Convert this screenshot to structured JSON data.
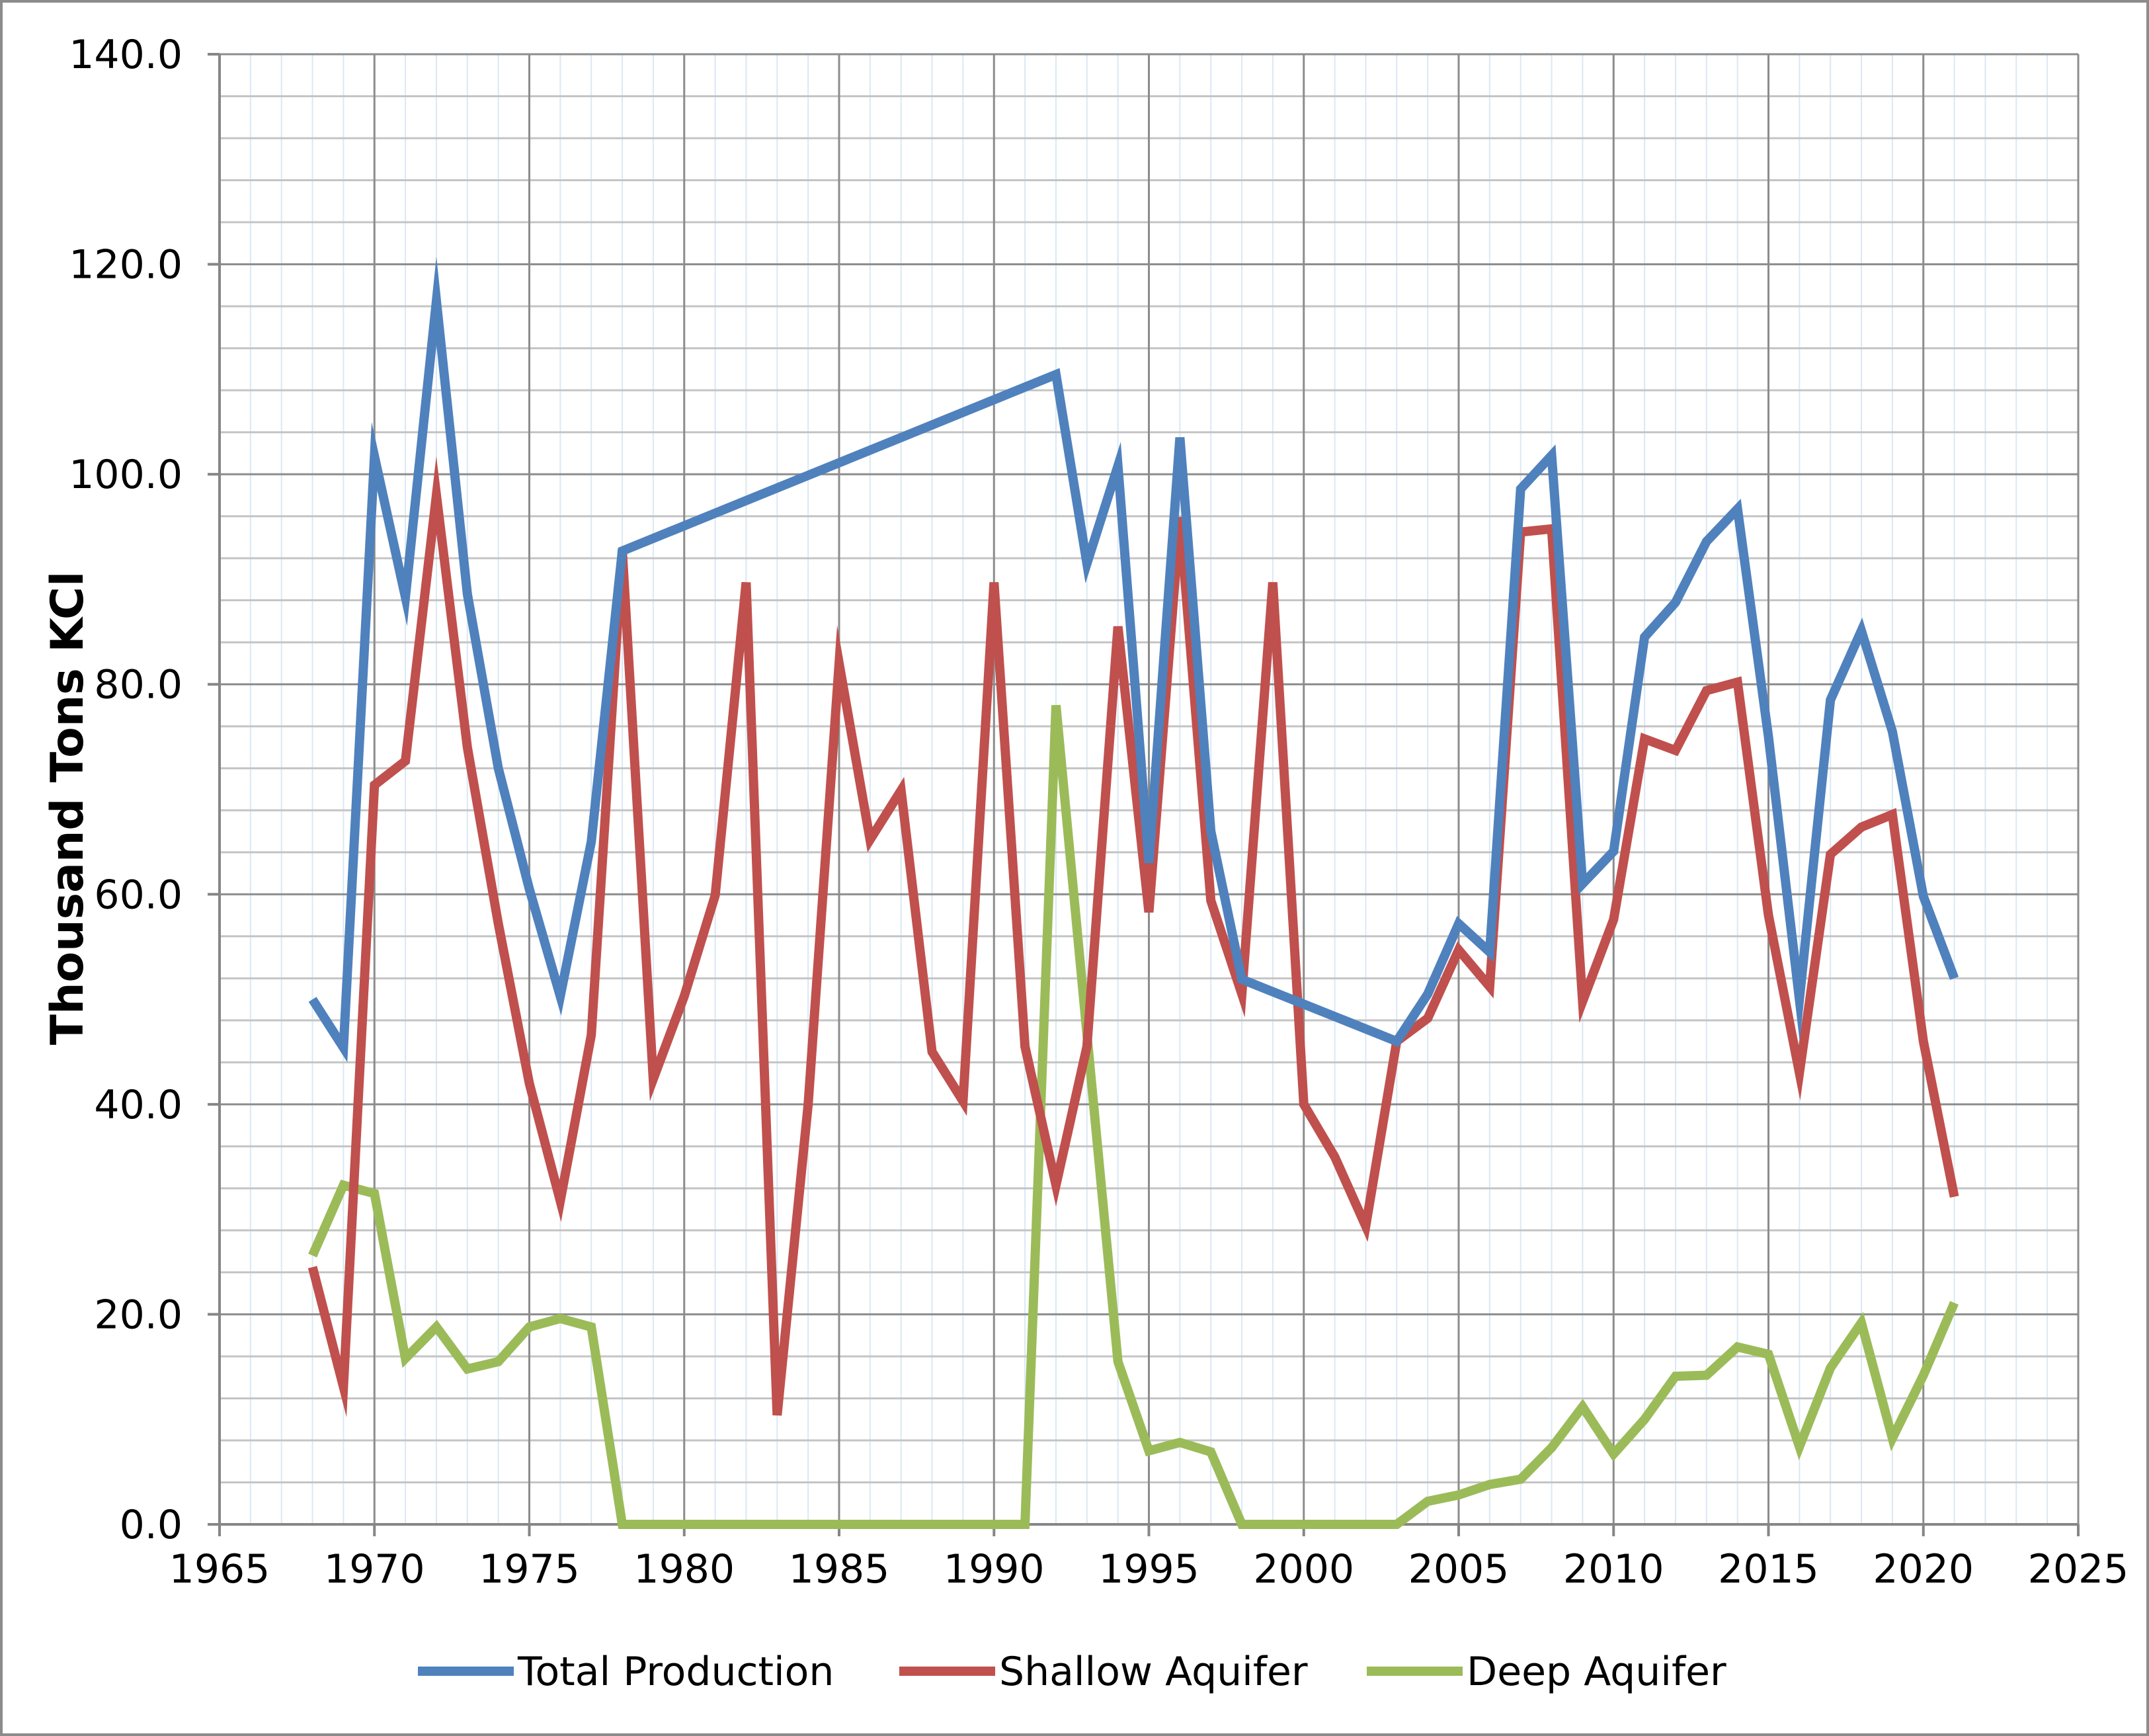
{
  "chart_data": {
    "type": "line",
    "title": "",
    "xlabel": "",
    "ylabel": "Thousand Tons KCl",
    "xlim": [
      1965,
      2025
    ],
    "ylim": [
      0,
      140
    ],
    "x_ticks": [
      "1965",
      "1970",
      "1975",
      "1980",
      "1985",
      "1990",
      "1995",
      "2000",
      "2005",
      "2010",
      "2015",
      "2020",
      "2025"
    ],
    "y_ticks": [
      "0.0",
      "20.0",
      "40.0",
      "60.0",
      "80.0",
      "100.0",
      "120.0",
      "140.0"
    ],
    "x_tick_values": [
      1965,
      1970,
      1975,
      1980,
      1985,
      1990,
      1995,
      2000,
      2005,
      2010,
      2015,
      2020,
      2025
    ],
    "y_tick_values": [
      0,
      20,
      40,
      60,
      80,
      100,
      120,
      140
    ],
    "grid": true,
    "legend_position": "bottom",
    "series": [
      {
        "name": "Total Production",
        "color": "#4f81bd",
        "x": [
          1968,
          1969,
          1970,
          1971,
          1972,
          1973,
          1974,
          1975,
          1976,
          1977,
          1978,
          1992,
          1993,
          1994,
          1995,
          1996,
          1997,
          1998,
          2003,
          2004,
          2005,
          2006,
          2007,
          2008,
          2009,
          2010,
          2011,
          2012,
          2013,
          2014,
          2015,
          2016,
          2017,
          2018,
          2019,
          2020,
          2021
        ],
        "values": [
          50.0,
          45.4,
          101.7,
          88.3,
          116.5,
          88.6,
          72.0,
          60.5,
          50.3,
          65.0,
          92.7,
          109.5,
          91.5,
          100.8,
          63.0,
          103.5,
          66.0,
          51.9,
          46.0,
          50.5,
          57.2,
          54.5,
          98.6,
          101.8,
          61.0,
          64.1,
          84.5,
          87.8,
          93.6,
          96.7,
          75.0,
          50.0,
          78.5,
          85.1,
          75.5,
          59.8,
          52.0
        ]
      },
      {
        "name": "Shallow Aquifer",
        "color": "#c0504d",
        "x": [
          1968,
          1969,
          1970,
          1971,
          1972,
          1973,
          1974,
          1975,
          1976,
          1977,
          1978,
          1979,
          1980,
          1981,
          1982,
          1983,
          1984,
          1985,
          1986,
          1987,
          1988,
          1989,
          1990,
          1991,
          1992,
          1993,
          1994,
          1995,
          1996,
          1997,
          1998,
          1999,
          2000,
          2001,
          2002,
          2003,
          2004,
          2005,
          2006,
          2007,
          2008,
          2009,
          2010,
          2011,
          2012,
          2013,
          2014,
          2015,
          2016,
          2017,
          2018,
          2019,
          2020,
          2021
        ],
        "values": [
          24.5,
          13.1,
          70.4,
          72.7,
          98.0,
          74.0,
          57.2,
          42.0,
          30.8,
          46.6,
          92.8,
          42.4,
          50.3,
          59.9,
          89.7,
          10.4,
          40.0,
          82.0,
          65.2,
          69.9,
          45.0,
          40.3,
          89.7,
          45.5,
          32.3,
          45.5,
          85.5,
          58.3,
          95.9,
          59.4,
          50.5,
          89.7,
          40.0,
          35.0,
          28.4,
          46.0,
          48.2,
          54.7,
          51.2,
          94.5,
          94.8,
          49.8,
          57.6,
          74.8,
          73.7,
          79.4,
          80.2,
          58.0,
          43.0,
          63.8,
          66.4,
          67.6,
          46.0,
          31.2
        ]
      },
      {
        "name": "Deep Aquifer",
        "color": "#9bbb59",
        "x": [
          1968,
          1969,
          1970,
          1971,
          1972,
          1973,
          1974,
          1975,
          1976,
          1977,
          1978,
          1979,
          1980,
          1981,
          1982,
          1983,
          1984,
          1985,
          1986,
          1987,
          1988,
          1989,
          1990,
          1991,
          1992,
          1993,
          1994,
          1995,
          1996,
          1997,
          1998,
          1999,
          2000,
          2001,
          2002,
          2003,
          2004,
          2005,
          2006,
          2007,
          2008,
          2009,
          2010,
          2011,
          2012,
          2013,
          2014,
          2015,
          2016,
          2017,
          2018,
          2019,
          2020,
          2021
        ],
        "values": [
          25.6,
          32.3,
          31.5,
          15.8,
          18.8,
          14.8,
          15.5,
          18.8,
          19.6,
          18.8,
          0,
          0,
          0,
          0,
          0,
          0,
          0,
          0,
          0,
          0,
          0,
          0,
          0,
          0,
          78.0,
          46.7,
          15.5,
          7.0,
          7.8,
          6.9,
          0,
          0,
          0,
          0,
          0,
          0,
          2.2,
          2.8,
          3.8,
          4.3,
          7.3,
          11.2,
          6.7,
          10.0,
          14.1,
          14.2,
          16.9,
          16.2,
          7.4,
          14.9,
          19.2,
          8.2,
          14.2,
          21.1
        ]
      }
    ]
  }
}
